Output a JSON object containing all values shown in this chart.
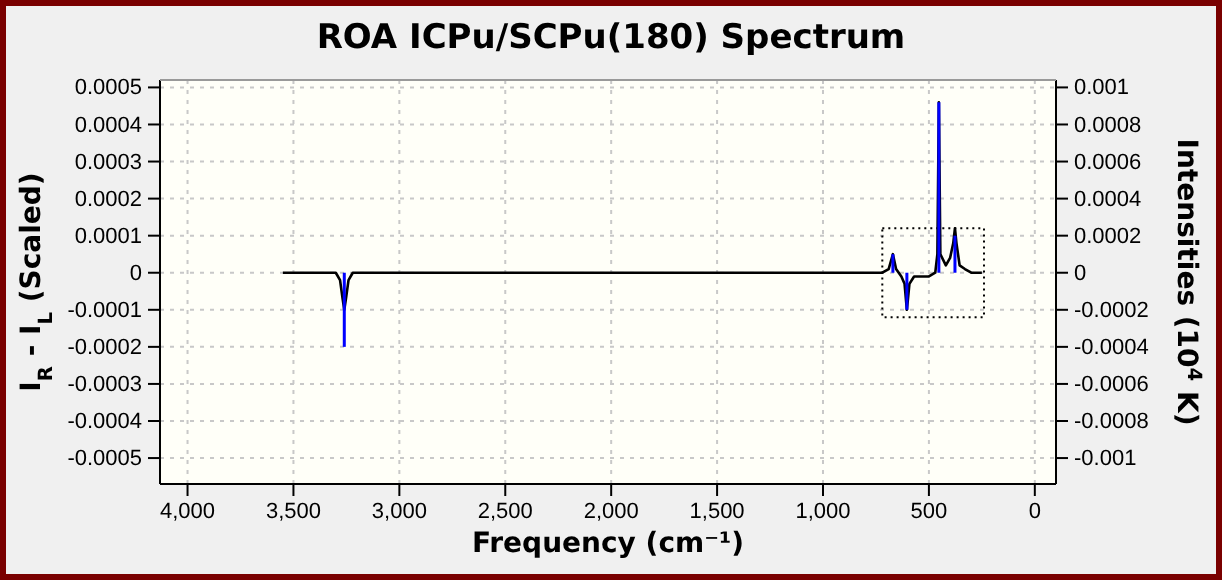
{
  "chart_data": {
    "type": "line",
    "title": "ROA ICPu/SCPu(180) Spectrum",
    "xlabel": "Frequency (cm⁻¹)",
    "ylabel": "I$_{R}$ - I$_{L}$ (Scaled)",
    "y2label": "Intensities (10$^{4}$ K)",
    "xlim": [
      4130,
      -100
    ],
    "xticks": [
      {
        "value": 4000,
        "label": "4,000"
      },
      {
        "value": 3500,
        "label": "3,500"
      },
      {
        "value": 3000,
        "label": "3,000"
      },
      {
        "value": 2500,
        "label": "2,500"
      },
      {
        "value": 2000,
        "label": "2,000"
      },
      {
        "value": 1500,
        "label": "1,500"
      },
      {
        "value": 1000,
        "label": "1,000"
      },
      {
        "value": 500,
        "label": "500"
      },
      0
    ],
    "ylim": [
      -0.00057,
      0.00052
    ],
    "yticks": [
      0.0005,
      0.0004,
      0.0003,
      0.0002,
      0.0001,
      0,
      -0.0001,
      -0.0002,
      -0.0003,
      -0.0004,
      -0.0005
    ],
    "y2lim": [
      -0.00114,
      0.00104
    ],
    "y2ticks": [
      0.001,
      0.0008,
      0.0006,
      0.0004,
      0.0002,
      0,
      -0.0002,
      -0.0004,
      -0.0006,
      -0.0008,
      -0.001
    ],
    "grid": true,
    "series": [
      {
        "color": "#000000",
        "x": [
          3550,
          3300,
          3280,
          3268,
          3260,
          3252,
          3240,
          3220,
          720,
          690,
          670,
          655,
          630,
          615,
          604,
          592,
          570,
          500,
          470,
          460,
          453,
          446,
          420,
          400,
          385,
          377,
          370,
          355,
          330,
          300,
          250
        ],
        "values": [
          0,
          0,
          -2e-05,
          -7e-05,
          -0.0001,
          -7e-05,
          -2e-05,
          0,
          0,
          1e-05,
          5e-05,
          1e-05,
          -1e-05,
          -3e-05,
          -0.0001,
          -3e-05,
          -1e-05,
          -1e-05,
          0,
          5e-05,
          0.00046,
          5e-05,
          2e-05,
          4e-05,
          8e-05,
          0.00012,
          8e-05,
          2e-05,
          1e-05,
          0,
          0
        ]
      },
      {
        "type": "bar",
        "color": "#0000ff",
        "x": [
          3260,
          670,
          604,
          453,
          377
        ],
        "values": [
          -0.0002,
          5e-05,
          -0.0001,
          0.00046,
          0.0001
        ]
      }
    ]
  }
}
